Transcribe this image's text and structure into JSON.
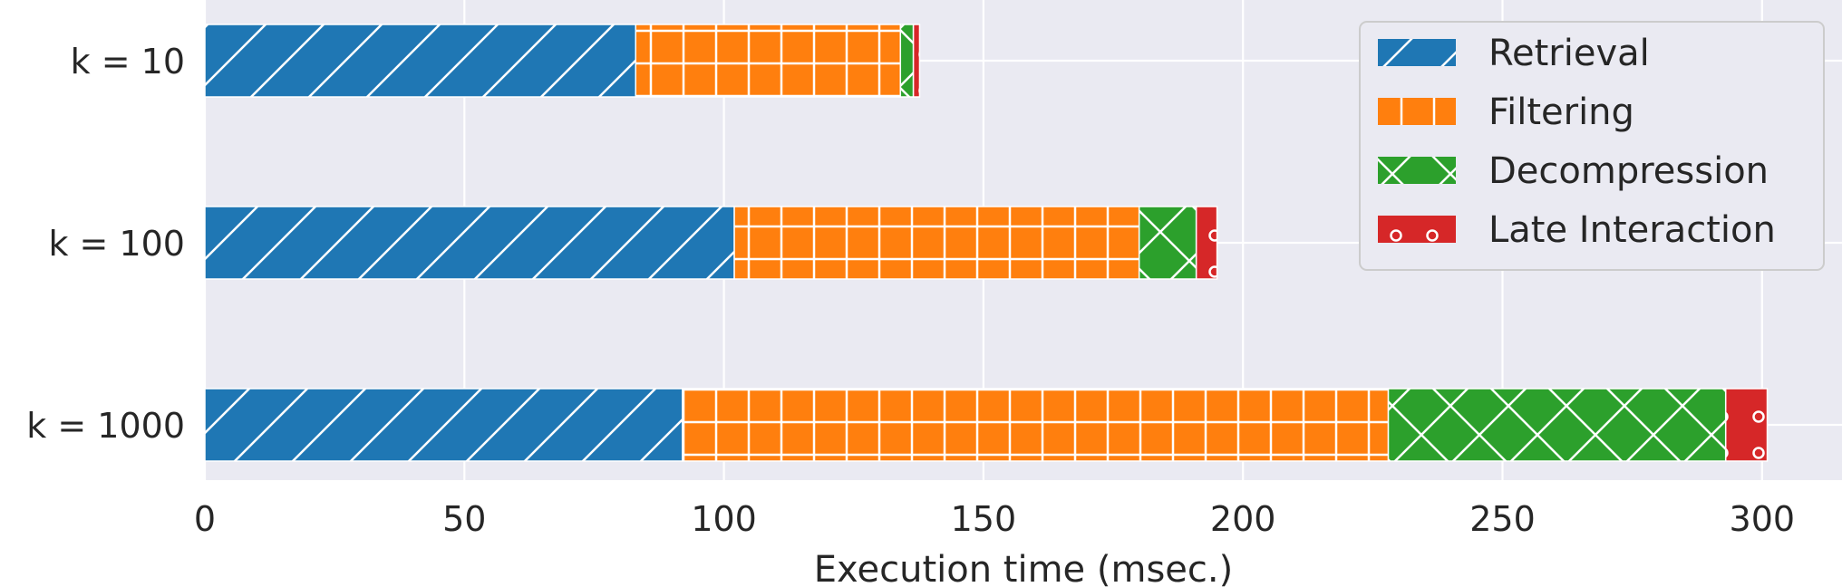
{
  "chart_data": {
    "type": "bar",
    "orientation": "horizontal",
    "stacked": true,
    "categories": [
      "k = 10",
      "k = 100",
      "k = 1000"
    ],
    "series": [
      {
        "name": "Retrieval",
        "values": [
          83,
          102,
          92
        ],
        "color": "#1f77b4",
        "hatch": "diagonal"
      },
      {
        "name": "Filtering",
        "values": [
          51,
          78,
          136
        ],
        "color": "#ff7f0e",
        "hatch": "grid"
      },
      {
        "name": "Decompression",
        "values": [
          2.5,
          11,
          65
        ],
        "color": "#2ca02c",
        "hatch": "cross"
      },
      {
        "name": "Late Interaction",
        "values": [
          1.2,
          4,
          8
        ],
        "color": "#d62728",
        "hatch": "circles"
      }
    ],
    "title": "",
    "xlabel": "Execution time (msec.)",
    "ylabel": "",
    "xlim": [
      0,
      316
    ],
    "xticks": [
      0,
      50,
      100,
      150,
      200,
      250,
      300
    ],
    "grid": true,
    "legend_position": "top-right"
  }
}
